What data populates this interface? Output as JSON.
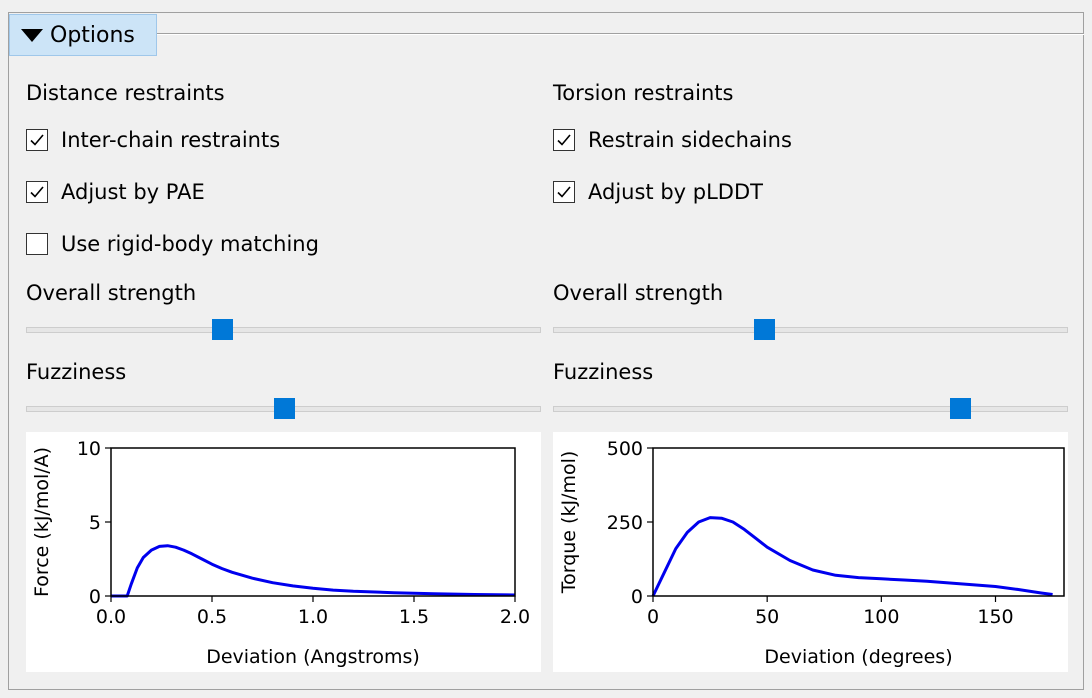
{
  "options": {
    "toggle_label": "Options"
  },
  "distance": {
    "heading": "Distance restraints",
    "checkboxes": [
      {
        "label": "Inter-chain restraints",
        "checked": true
      },
      {
        "label": "Adjust by PAE",
        "checked": true
      },
      {
        "label": "Use rigid-body matching",
        "checked": false
      }
    ],
    "strength": {
      "label": "Overall strength",
      "value": 0.38
    },
    "fuzziness": {
      "label": "Fuzziness",
      "value": 0.5
    }
  },
  "torsion": {
    "heading": "Torsion restraints",
    "checkboxes": [
      {
        "label": "Restrain sidechains",
        "checked": true
      },
      {
        "label": "Adjust by pLDDT",
        "checked": true
      }
    ],
    "strength": {
      "label": "Overall strength",
      "value": 0.41
    },
    "fuzziness": {
      "label": "Fuzziness",
      "value": 0.79
    }
  },
  "chart_data": [
    {
      "type": "line",
      "xlabel": "Deviation (Angstroms)",
      "ylabel": "Force (kJ/mol/A)",
      "xlim": [
        0,
        2.0
      ],
      "ylim": [
        0,
        10
      ],
      "xticks": [
        "0.0",
        "0.5",
        "1.0",
        "1.5",
        "2.0"
      ],
      "yticks": [
        "0",
        "5",
        "10"
      ],
      "xtick_values": [
        0,
        0.5,
        1.0,
        1.5,
        2.0
      ],
      "ytick_values": [
        0,
        5,
        10
      ],
      "color": "#0000ee",
      "x": [
        0,
        0.08,
        0.1,
        0.13,
        0.16,
        0.2,
        0.24,
        0.28,
        0.32,
        0.36,
        0.4,
        0.45,
        0.5,
        0.55,
        0.6,
        0.7,
        0.8,
        0.9,
        1.0,
        1.1,
        1.2,
        1.4,
        1.6,
        1.8,
        2.0
      ],
      "y": [
        0,
        0,
        0.8,
        1.9,
        2.6,
        3.1,
        3.35,
        3.4,
        3.3,
        3.1,
        2.85,
        2.5,
        2.15,
        1.85,
        1.6,
        1.2,
        0.9,
        0.68,
        0.52,
        0.4,
        0.32,
        0.22,
        0.15,
        0.1,
        0.07
      ]
    },
    {
      "type": "line",
      "xlabel": "Deviation (degrees)",
      "ylabel": "Torque (kJ/mol)",
      "xlim": [
        0,
        180
      ],
      "ylim": [
        0,
        500
      ],
      "xticks": [
        "0",
        "50",
        "100",
        "150"
      ],
      "yticks": [
        "0",
        "250",
        "500"
      ],
      "xtick_values": [
        0,
        50,
        100,
        150
      ],
      "ytick_values": [
        0,
        250,
        500
      ],
      "color": "#0000ee",
      "x": [
        0,
        5,
        10,
        15,
        20,
        25,
        30,
        35,
        40,
        45,
        50,
        60,
        70,
        80,
        90,
        100,
        110,
        120,
        130,
        140,
        150,
        160,
        170,
        175
      ],
      "y": [
        0,
        80,
        160,
        215,
        250,
        265,
        263,
        250,
        225,
        195,
        165,
        120,
        88,
        70,
        62,
        58,
        54,
        50,
        44,
        38,
        32,
        22,
        10,
        5
      ]
    }
  ]
}
